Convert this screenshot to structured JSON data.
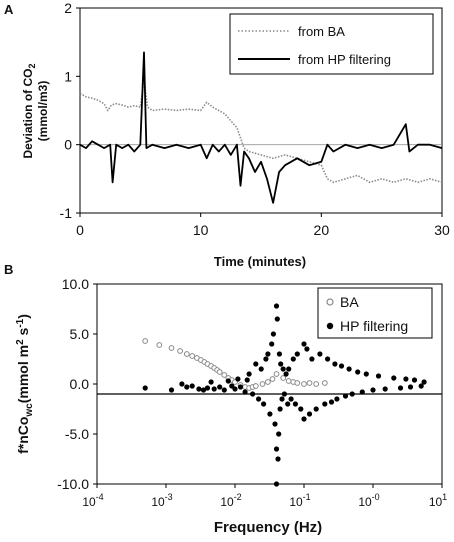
{
  "chart_data": [
    {
      "panel": "A",
      "type": "line",
      "ylabel_line1": "Deviation of CO",
      "ylabel_sub": "2",
      "ylabel_line2": "(mmol/m3)",
      "xlabel": "Time (minutes)",
      "xlim": [
        0,
        30
      ],
      "ylim": [
        -1,
        2
      ],
      "xticks": [
        0,
        10,
        20,
        30
      ],
      "yticks": [
        -1,
        0,
        1,
        2
      ],
      "legend_position": "top-right",
      "series": [
        {
          "name": "from BA",
          "style": "dotted",
          "color": "#8a8a8a",
          "x": [
            0,
            0.5,
            1,
            1.5,
            2,
            2.3,
            2.6,
            3,
            3.5,
            4,
            4.5,
            5,
            5.3,
            5.6,
            6,
            7,
            8,
            9,
            10,
            10.5,
            11,
            11.5,
            12,
            12.5,
            13,
            13.3,
            13.6,
            14,
            15,
            16,
            17,
            18,
            19,
            20,
            20.5,
            21,
            22,
            23,
            24,
            25,
            26,
            27,
            28,
            29,
            30
          ],
          "y": [
            0.75,
            0.7,
            0.68,
            0.65,
            0.6,
            0.5,
            0.58,
            0.6,
            0.58,
            0.55,
            0.57,
            0.55,
            0.95,
            0.55,
            0.5,
            0.52,
            0.5,
            0.52,
            0.5,
            0.62,
            0.55,
            0.5,
            0.45,
            0.35,
            0.25,
            0.1,
            -0.05,
            -0.1,
            -0.15,
            -0.2,
            -0.15,
            -0.2,
            -0.25,
            -0.3,
            -0.5,
            -0.55,
            -0.5,
            -0.45,
            -0.55,
            -0.5,
            -0.55,
            -0.5,
            -0.55,
            -0.5,
            -0.55
          ]
        },
        {
          "name": "from HP filtering",
          "style": "solid",
          "color": "#000000",
          "x": [
            0,
            0.5,
            1,
            1.5,
            2,
            2.5,
            2.7,
            3,
            3.5,
            4,
            4.5,
            5,
            5.3,
            5.5,
            6,
            7,
            8,
            9,
            10,
            10.5,
            11,
            11.5,
            12,
            12.5,
            13,
            13.3,
            13.6,
            14,
            14.5,
            15,
            15.5,
            16,
            16.5,
            17,
            18,
            19,
            20,
            20.5,
            21,
            22,
            23,
            24,
            25,
            26,
            27,
            27.3,
            28,
            29,
            30
          ],
          "y": [
            0.0,
            -0.05,
            0.05,
            0.0,
            -0.05,
            0.0,
            -0.55,
            0.0,
            -0.05,
            0.0,
            -0.1,
            0.0,
            1.35,
            -0.05,
            0.0,
            -0.05,
            0.0,
            -0.05,
            0.0,
            -0.2,
            0.0,
            -0.1,
            0.0,
            -0.15,
            0.0,
            -0.6,
            -0.1,
            -0.2,
            -0.4,
            -0.25,
            -0.5,
            -0.85,
            -0.4,
            -0.3,
            -0.2,
            -0.3,
            -0.25,
            0.0,
            -0.1,
            0.0,
            -0.05,
            0.0,
            -0.05,
            0.0,
            0.3,
            -0.1,
            0.0,
            0.0,
            -0.05
          ]
        }
      ]
    },
    {
      "panel": "B",
      "type": "scatter",
      "ylabel": "f*nCo",
      "ylabel_sub": "wc",
      "ylabel_units": "(mmol m",
      "ylabel_exp1": "2",
      "ylabel_mid": " s",
      "ylabel_exp2": "-1",
      "ylabel_close": ")",
      "xlabel": "Frequency (Hz)",
      "xscale": "log",
      "xlim": [
        0.0001,
        10
      ],
      "ylim": [
        -10,
        10
      ],
      "yticks": [
        -10,
        -5,
        0,
        5,
        10
      ],
      "ytick_labels": [
        "-10.0",
        "-5.0",
        "0.0",
        "5.0",
        "10.0"
      ],
      "xtick_bases": [
        "10",
        "10",
        "10",
        "10",
        "10",
        "10"
      ],
      "xtick_exps": [
        "-4",
        "-3",
        "-2",
        "-1",
        "-0",
        "1"
      ],
      "xtick_values": [
        0.0001,
        0.001,
        0.01,
        0.1,
        1,
        10
      ],
      "hline_y": -1,
      "legend_position": "top-right",
      "series": [
        {
          "name": "BA",
          "marker": "open-circle",
          "color": "#888888",
          "x": [
            0.0005,
            0.0008,
            0.0012,
            0.0016,
            0.002,
            0.0024,
            0.0028,
            0.0032,
            0.0036,
            0.004,
            0.0045,
            0.005,
            0.0055,
            0.006,
            0.007,
            0.008,
            0.009,
            0.01,
            0.012,
            0.014,
            0.016,
            0.018,
            0.02,
            0.025,
            0.03,
            0.035,
            0.04,
            0.05,
            0.06,
            0.07,
            0.08,
            0.1,
            0.12,
            0.15,
            0.2
          ],
          "y": [
            4.3,
            3.9,
            3.6,
            3.3,
            3.0,
            2.8,
            2.6,
            2.4,
            2.2,
            2.0,
            1.8,
            1.6,
            1.4,
            1.2,
            0.9,
            0.6,
            0.4,
            0.2,
            -0.1,
            -0.3,
            -0.4,
            -0.3,
            -0.2,
            0.0,
            0.2,
            0.5,
            1.0,
            0.6,
            0.3,
            0.2,
            0.1,
            0.0,
            0.1,
            0.0,
            0.1
          ]
        },
        {
          "name": "HP filtering",
          "marker": "filled-circle",
          "color": "#000000",
          "x": [
            0.0005,
            0.0012,
            0.0017,
            0.002,
            0.0024,
            0.003,
            0.0035,
            0.004,
            0.0045,
            0.005,
            0.006,
            0.007,
            0.008,
            0.009,
            0.01,
            0.011,
            0.012,
            0.014,
            0.015,
            0.016,
            0.018,
            0.02,
            0.022,
            0.024,
            0.026,
            0.028,
            0.03,
            0.032,
            0.034,
            0.036,
            0.038,
            0.04,
            0.04,
            0.04,
            0.041,
            0.042,
            0.043,
            0.044,
            0.045,
            0.046,
            0.048,
            0.05,
            0.052,
            0.055,
            0.058,
            0.06,
            0.065,
            0.07,
            0.075,
            0.08,
            0.09,
            0.1,
            0.1,
            0.11,
            0.12,
            0.13,
            0.15,
            0.17,
            0.2,
            0.22,
            0.25,
            0.28,
            0.3,
            0.35,
            0.4,
            0.45,
            0.5,
            0.6,
            0.7,
            0.8,
            1.0,
            1.2,
            1.5,
            2.0,
            2.5,
            3.0,
            3.5,
            4.0,
            5.0,
            5.5
          ],
          "y": [
            -0.4,
            -0.6,
            0.0,
            -0.3,
            -0.2,
            -0.5,
            -0.6,
            -0.4,
            0.2,
            -0.5,
            -0.3,
            -0.6,
            0.3,
            -0.2,
            -0.5,
            0.5,
            -0.3,
            -0.8,
            0.4,
            1.0,
            -1.0,
            2.0,
            -1.5,
            1.5,
            -2.0,
            2.5,
            3.0,
            -3.0,
            4.0,
            5.0,
            -4.0,
            7.8,
            -6.5,
            -10.0,
            6.5,
            -7.5,
            -5.0,
            3.0,
            -2.5,
            2.0,
            -1.5,
            1.5,
            -1.0,
            1.0,
            -2.0,
            1.5,
            -1.5,
            2.5,
            -2.0,
            3.0,
            -2.5,
            4.0,
            -3.5,
            3.5,
            -3.0,
            2.5,
            -2.5,
            3.0,
            -2.0,
            2.5,
            -1.8,
            2.0,
            -1.5,
            1.8,
            -1.2,
            1.5,
            -1.0,
            1.2,
            -0.8,
            1.0,
            -0.6,
            0.8,
            -0.5,
            0.6,
            -0.4,
            0.5,
            -0.3,
            0.4,
            -0.2,
            0.2
          ]
        }
      ]
    }
  ]
}
